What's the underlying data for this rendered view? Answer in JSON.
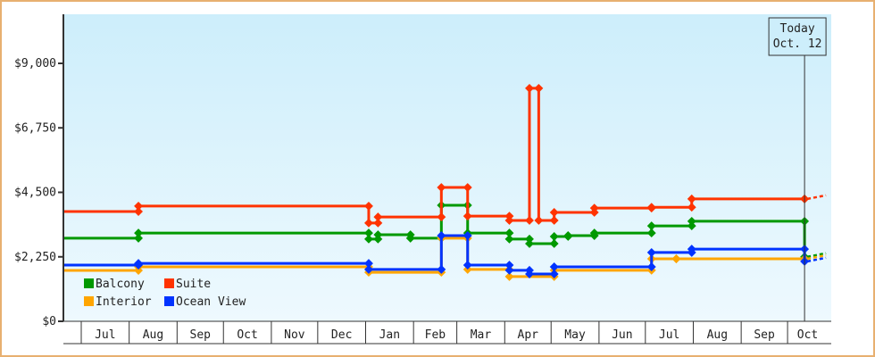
{
  "chart_data": {
    "type": "line",
    "step": true,
    "xlim": [
      "2010-06-19",
      "2011-10-31"
    ],
    "ylim": [
      0,
      10000
    ],
    "y_ticks": [
      0,
      2250,
      4500,
      6750,
      9000
    ],
    "y_tick_labels": [
      "$0",
      "$2,250",
      "$4,500",
      "$6,750",
      "$9,000"
    ],
    "x_tick_labels": [
      "Jul",
      "Aug",
      "Sep",
      "Oct",
      "Nov",
      "Dec",
      "Jan",
      "Feb",
      "Mar",
      "Apr",
      "May",
      "Jun",
      "Jul",
      "Aug",
      "Sep",
      "Oct"
    ],
    "x_tick_months": [
      "2010-07",
      "2010-08",
      "2010-09",
      "2010-10",
      "2010-11",
      "2010-12",
      "2011-01",
      "2011-02",
      "2011-03",
      "2011-04",
      "2011-05",
      "2011-06",
      "2011-07",
      "2011-08",
      "2011-09",
      "2011-10"
    ],
    "today": {
      "date": "2011-10-12",
      "label_1": "Today",
      "label_2": "Oct. 12"
    },
    "legend_placement": "bottom-left",
    "series": [
      {
        "name": "Balcony",
        "color": "#009900",
        "points": [
          [
            "2010-06-19",
            2900
          ],
          [
            "2010-08-07",
            3080
          ],
          [
            "2011-01-03",
            2870
          ],
          [
            "2011-01-09",
            3020
          ],
          [
            "2011-01-30",
            2900
          ],
          [
            "2011-02-19",
            4050
          ],
          [
            "2011-03-08",
            3080
          ],
          [
            "2011-04-04",
            2870
          ],
          [
            "2011-04-17",
            2710
          ],
          [
            "2011-05-03",
            2960
          ],
          [
            "2011-05-12",
            2990
          ],
          [
            "2011-05-29",
            3080
          ],
          [
            "2011-07-05",
            3330
          ],
          [
            "2011-07-31",
            3490
          ],
          [
            "2011-10-12",
            2250
          ]
        ]
      },
      {
        "name": "Suite",
        "color": "#ff3300",
        "points": [
          [
            "2010-06-19",
            3830
          ],
          [
            "2010-08-07",
            4020
          ],
          [
            "2011-01-03",
            3430
          ],
          [
            "2011-01-09",
            3640
          ],
          [
            "2011-02-19",
            4670
          ],
          [
            "2011-03-08",
            3670
          ],
          [
            "2011-04-04",
            3520
          ],
          [
            "2011-04-17",
            8130
          ],
          [
            "2011-04-23",
            3520
          ],
          [
            "2011-05-03",
            3800
          ],
          [
            "2011-05-29",
            3950
          ],
          [
            "2011-07-05",
            3980
          ],
          [
            "2011-07-31",
            4270
          ],
          [
            "2011-10-12",
            4270
          ]
        ]
      },
      {
        "name": "Interior",
        "color": "#ffa500",
        "points": [
          [
            "2010-06-19",
            1775
          ],
          [
            "2010-08-07",
            1900
          ],
          [
            "2011-01-03",
            1710
          ],
          [
            "2011-02-19",
            2900
          ],
          [
            "2011-03-08",
            1810
          ],
          [
            "2011-04-04",
            1560
          ],
          [
            "2011-05-03",
            1780
          ],
          [
            "2011-07-05",
            2180
          ],
          [
            "2011-07-21",
            2180
          ],
          [
            "2011-10-12",
            2180
          ]
        ]
      },
      {
        "name": "Ocean View",
        "color": "#0033ff",
        "points": [
          [
            "2010-06-19",
            1960
          ],
          [
            "2010-08-07",
            2020
          ],
          [
            "2011-01-03",
            1810
          ],
          [
            "2011-02-19",
            2990
          ],
          [
            "2011-03-08",
            1960
          ],
          [
            "2011-04-04",
            1780
          ],
          [
            "2011-04-17",
            1650
          ],
          [
            "2011-05-03",
            1900
          ],
          [
            "2011-07-05",
            2400
          ],
          [
            "2011-07-31",
            2520
          ],
          [
            "2011-10-12",
            2090
          ]
        ]
      }
    ]
  }
}
